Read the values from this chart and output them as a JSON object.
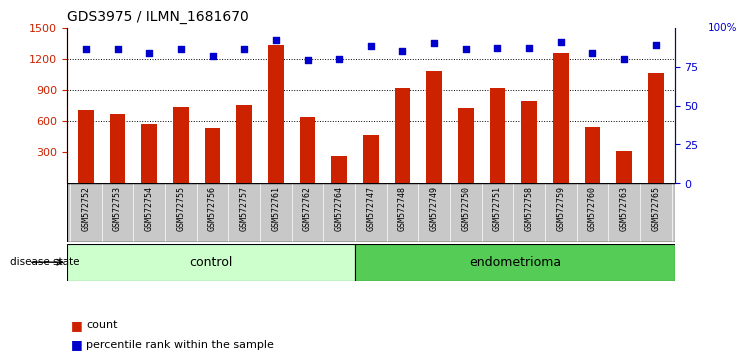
{
  "title": "GDS3975 / ILMN_1681670",
  "samples": [
    "GSM572752",
    "GSM572753",
    "GSM572754",
    "GSM572755",
    "GSM572756",
    "GSM572757",
    "GSM572761",
    "GSM572762",
    "GSM572764",
    "GSM572747",
    "GSM572748",
    "GSM572749",
    "GSM572750",
    "GSM572751",
    "GSM572758",
    "GSM572759",
    "GSM572760",
    "GSM572763",
    "GSM572765"
  ],
  "counts": [
    710,
    670,
    570,
    740,
    530,
    760,
    1330,
    640,
    260,
    470,
    920,
    1080,
    730,
    920,
    790,
    1260,
    540,
    310,
    1060
  ],
  "percentiles": [
    86,
    86,
    84,
    86,
    82,
    86,
    92,
    79,
    80,
    88,
    85,
    90,
    86,
    87,
    87,
    91,
    84,
    80,
    89
  ],
  "control_count": 9,
  "endometrioma_count": 10,
  "ylim_left": [
    0,
    1500
  ],
  "ylim_right": [
    0,
    100
  ],
  "yticks_left": [
    300,
    600,
    900,
    1200,
    1500
  ],
  "yticks_right": [
    0,
    25,
    50,
    75,
    100
  ],
  "bar_color": "#cc2200",
  "dot_color": "#0000cc",
  "plot_bg": "#ffffff",
  "label_bg": "#c8c8c8",
  "control_color": "#ccffcc",
  "endometrioma_color": "#55cc55",
  "legend_count_label": "count",
  "legend_pct_label": "percentile rank within the sample",
  "disease_state_label": "disease state",
  "control_label": "control",
  "endometrioma_label": "endometrioma",
  "bar_width": 0.5
}
